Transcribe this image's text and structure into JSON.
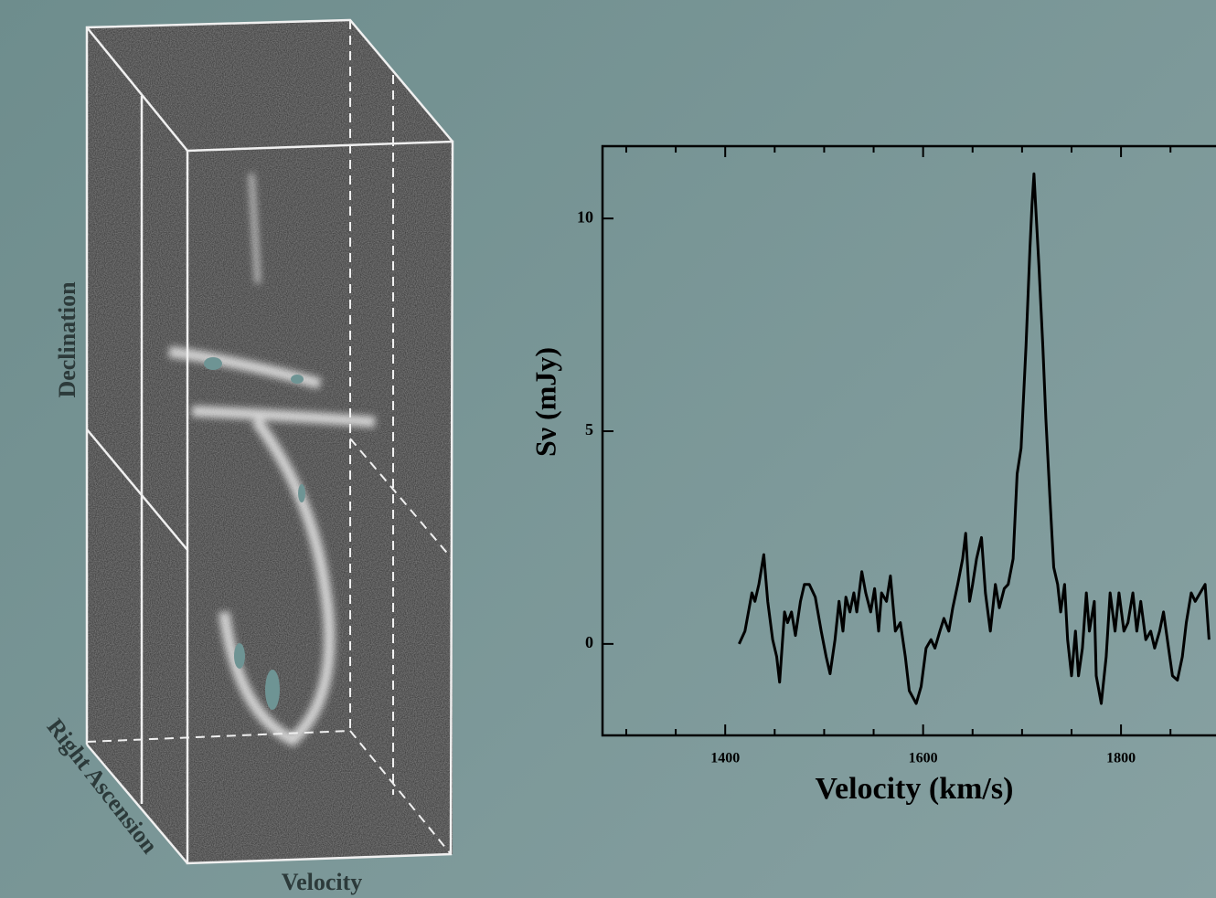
{
  "cube": {
    "y_label": "Declination",
    "z_label": "Right Ascension",
    "x_label": "Velocity"
  },
  "chart_data": {
    "type": "line",
    "x_label": "Velocity (km/s)",
    "y_label": "Sν (mJy)",
    "color": "#000000",
    "xlim": [
      1276,
      1896
    ],
    "ylim": [
      -2.15,
      11.7
    ],
    "xticks": [
      1400,
      1600,
      1800
    ],
    "xticks_minor": [
      1300,
      1350,
      1450,
      1500,
      1550,
      1650,
      1700,
      1750,
      1850
    ],
    "yticks": [
      0,
      5,
      10
    ],
    "x": [
      1414,
      1420,
      1427,
      1430,
      1434,
      1439,
      1443,
      1448,
      1452,
      1455,
      1460,
      1463,
      1467,
      1471,
      1476,
      1480,
      1485,
      1491,
      1497,
      1502,
      1506,
      1511,
      1515,
      1519,
      1522,
      1526,
      1530,
      1533,
      1538,
      1542,
      1547,
      1551,
      1555,
      1558,
      1563,
      1567,
      1572,
      1577,
      1582,
      1586,
      1593,
      1598,
      1603,
      1608,
      1612,
      1617,
      1621,
      1626,
      1630,
      1635,
      1640,
      1643,
      1647,
      1650,
      1654,
      1659,
      1663,
      1668,
      1673,
      1677,
      1682,
      1686,
      1691,
      1695,
      1699,
      1704,
      1708,
      1710,
      1712,
      1714,
      1717,
      1721,
      1724,
      1728,
      1732,
      1736,
      1739,
      1743,
      1746,
      1750,
      1754,
      1757,
      1761,
      1765,
      1768,
      1773,
      1775,
      1780,
      1785,
      1789,
      1794,
      1798,
      1803,
      1807,
      1812,
      1816,
      1820,
      1825,
      1830,
      1834,
      1839,
      1843,
      1848,
      1852,
      1857,
      1862,
      1866,
      1871,
      1875,
      1880,
      1885,
      1889
    ],
    "values": [
      0,
      0.3,
      1.2,
      1.0,
      1.4,
      2.1,
      1.0,
      0.1,
      -0.3,
      -0.9,
      0.75,
      0.5,
      0.75,
      0.2,
      1.0,
      1.4,
      1.4,
      1.1,
      0.3,
      -0.3,
      -0.7,
      0.1,
      1.0,
      0.3,
      1.1,
      0.75,
      1.2,
      0.75,
      1.7,
      1.2,
      0.75,
      1.3,
      0.3,
      1.2,
      1.0,
      1.6,
      0.3,
      0.5,
      -0.3,
      -1.1,
      -1.4,
      -1.0,
      -0.1,
      0.1,
      -0.1,
      0.3,
      0.6,
      0.3,
      0.85,
      1.4,
      2.0,
      2.6,
      1.0,
      1.4,
      2.0,
      2.5,
      1.2,
      0.3,
      1.4,
      0.85,
      1.3,
      1.4,
      2.0,
      4.0,
      4.6,
      7.0,
      9.3,
      10.3,
      11.05,
      10.2,
      8.9,
      7.0,
      5.3,
      3.5,
      1.8,
      1.4,
      0.75,
      1.4,
      0.1,
      -0.75,
      0.3,
      -0.75,
      -0.1,
      1.2,
      0.3,
      1.0,
      -0.75,
      -1.4,
      -0.3,
      1.2,
      0.3,
      1.2,
      0.3,
      0.5,
      1.2,
      0.3,
      1.0,
      0.1,
      0.3,
      -0.1,
      0.3,
      0.75,
      -0.1,
      -0.75,
      -0.85,
      -0.3,
      0.5,
      1.2,
      1.0,
      1.2,
      1.4,
      0.1
    ]
  }
}
